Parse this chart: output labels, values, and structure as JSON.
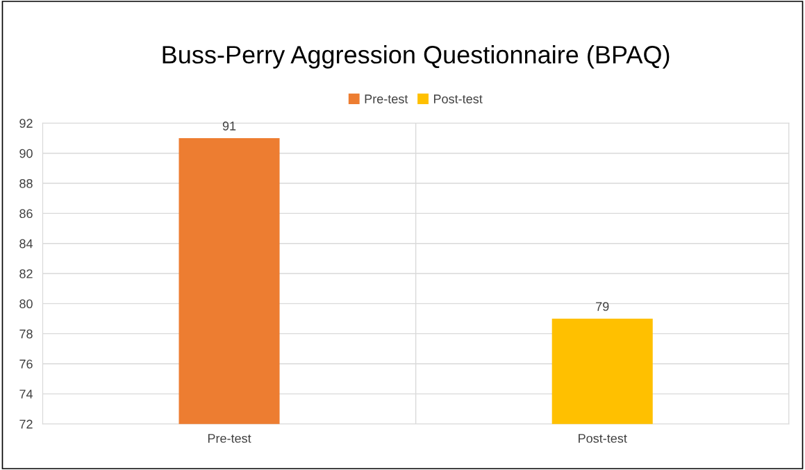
{
  "chart_data": {
    "type": "bar",
    "title": "Buss-Perry Aggression Questionnaire (BPAQ)",
    "categories": [
      "Pre-test",
      "Post-test"
    ],
    "series": [
      {
        "name": "Pre-test",
        "color": "#ed7d31",
        "values": [
          91,
          null
        ]
      },
      {
        "name": "Post-test",
        "color": "#ffc000",
        "values": [
          null,
          79
        ]
      }
    ],
    "ylim": [
      72,
      92
    ],
    "yticks": [
      72,
      74,
      76,
      78,
      80,
      82,
      84,
      86,
      88,
      90,
      92
    ],
    "grid": true,
    "legend": "top",
    "data_labels": true
  }
}
